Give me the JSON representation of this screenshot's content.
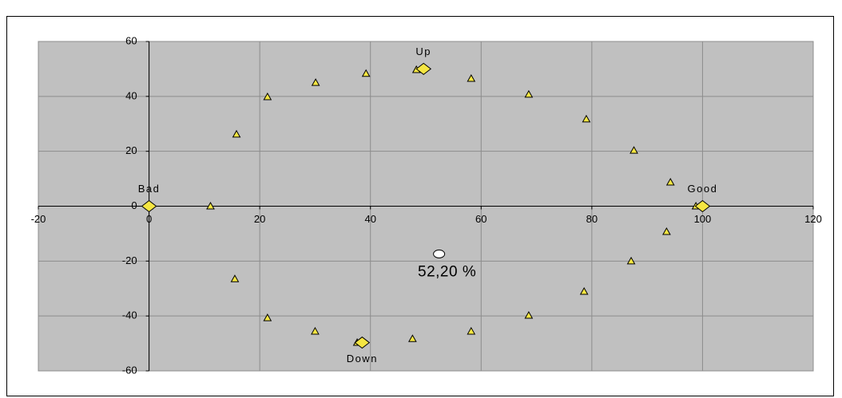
{
  "chart_data": {
    "type": "scatter",
    "xlim": [
      -20,
      120
    ],
    "ylim": [
      -60,
      60
    ],
    "xticks": [
      -20,
      0,
      20,
      40,
      60,
      80,
      100,
      120
    ],
    "yticks": [
      -60,
      -40,
      -20,
      0,
      20,
      40,
      60
    ],
    "grid": true,
    "series": [
      {
        "marker": "triangle",
        "color": "#f5e642",
        "x": [
          0,
          11.1,
          15.8,
          21.4,
          30.1,
          39.2,
          48.3,
          58.2,
          68.6,
          79,
          87.6,
          94.2,
          98.8,
          93.5,
          87.1,
          78.6,
          68.6,
          58.2,
          47.6,
          37.6,
          30,
          21.4,
          15.5
        ],
        "y": [
          0,
          0,
          26.2,
          39.8,
          45,
          48.3,
          49.7,
          46.5,
          40.7,
          31.7,
          20.3,
          8.7,
          0,
          -9.3,
          -20,
          -31.1,
          -39.8,
          -45.6,
          -48.3,
          -49.7,
          -45.6,
          -40.7,
          -26.5
        ]
      },
      {
        "marker": "diamond",
        "color": "#f5e642",
        "x": [
          49.6,
          100,
          38.5,
          0
        ],
        "y": [
          50,
          0,
          -49.7,
          0
        ],
        "labels": [
          "Up",
          "Good",
          "Down",
          "Bad"
        ]
      },
      {
        "marker": "circle",
        "color": "#ffffff",
        "x": [
          52.4
        ],
        "y": [
          -17.4
        ],
        "labels": [
          "52,20 %"
        ]
      }
    ]
  }
}
